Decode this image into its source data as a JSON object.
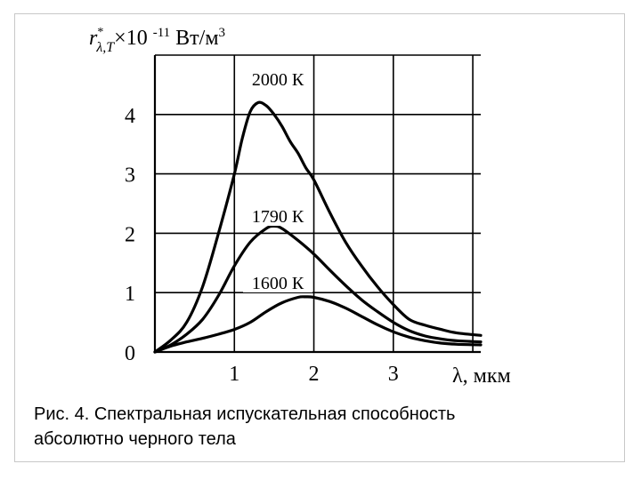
{
  "chart_data": {
    "type": "line",
    "ylabel": {
      "symbol": "r",
      "star": "*",
      "subscript": "λ,T",
      "multiplier": "×10",
      "exponent": "-11",
      "unit": "Вт/м",
      "unit_power": "3"
    },
    "xlabel": "λ, мкм",
    "xlim": [
      0,
      4.1
    ],
    "ylim": [
      0,
      5
    ],
    "x_ticks": [
      "1",
      "2",
      "3"
    ],
    "x_tick_values": [
      1,
      2,
      3
    ],
    "y_ticks": [
      "0",
      "1",
      "2",
      "3",
      "4"
    ],
    "y_tick_values": [
      0,
      1,
      2,
      3,
      4
    ],
    "grid": true,
    "series": [
      {
        "name": "2000 К",
        "x": [
          0.0,
          0.2,
          0.4,
          0.6,
          0.8,
          1.0,
          1.1,
          1.2,
          1.3,
          1.4,
          1.5,
          1.6,
          1.7,
          1.8,
          1.9,
          2.0,
          2.2,
          2.4,
          2.6,
          2.8,
          3.0,
          3.2,
          3.4,
          3.6,
          3.8,
          4.1
        ],
        "values": [
          0.0,
          0.2,
          0.5,
          1.1,
          2.0,
          3.0,
          3.6,
          4.05,
          4.2,
          4.15,
          4.0,
          3.8,
          3.55,
          3.35,
          3.1,
          2.9,
          2.35,
          1.85,
          1.45,
          1.1,
          0.8,
          0.55,
          0.45,
          0.38,
          0.32,
          0.28
        ]
      },
      {
        "name": "1790 К",
        "x": [
          0.0,
          0.2,
          0.4,
          0.6,
          0.8,
          1.0,
          1.2,
          1.4,
          1.5,
          1.6,
          1.8,
          2.0,
          2.2,
          2.4,
          2.6,
          2.8,
          3.0,
          3.2,
          3.4,
          3.6,
          3.8,
          4.1
        ],
        "values": [
          0.0,
          0.12,
          0.3,
          0.55,
          0.95,
          1.45,
          1.85,
          2.08,
          2.12,
          2.08,
          1.88,
          1.65,
          1.38,
          1.12,
          0.88,
          0.68,
          0.5,
          0.36,
          0.27,
          0.22,
          0.19,
          0.17
        ]
      },
      {
        "name": "1600 К",
        "x": [
          0.0,
          0.2,
          0.4,
          0.6,
          0.8,
          1.0,
          1.2,
          1.4,
          1.6,
          1.8,
          1.9,
          2.0,
          2.2,
          2.4,
          2.6,
          2.8,
          3.0,
          3.2,
          3.4,
          3.6,
          3.8,
          4.1
        ],
        "values": [
          0.0,
          0.1,
          0.17,
          0.23,
          0.3,
          0.38,
          0.5,
          0.68,
          0.83,
          0.92,
          0.93,
          0.92,
          0.85,
          0.74,
          0.6,
          0.46,
          0.34,
          0.25,
          0.19,
          0.15,
          0.13,
          0.12
        ]
      }
    ]
  },
  "caption": {
    "line1": "Рис. 4. Спектральная испускательная способность",
    "line2": "абсолютно черного тела"
  }
}
